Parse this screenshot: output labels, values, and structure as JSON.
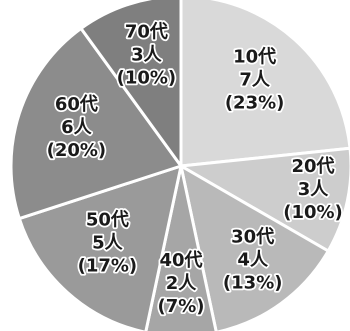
{
  "chart_data": {
    "type": "pie",
    "title": "",
    "slices": [
      {
        "category": "10代",
        "count_label": "7人",
        "percent_label": "(23%)",
        "value": 7,
        "color": "#d9d9d9"
      },
      {
        "category": "20代",
        "count_label": "3人",
        "percent_label": "(10%)",
        "value": 3,
        "color": "#cdcdcd"
      },
      {
        "category": "30代",
        "count_label": "4人",
        "percent_label": "(13%)",
        "value": 4,
        "color": "#b9b9b9"
      },
      {
        "category": "40代",
        "count_label": "2人",
        "percent_label": "(7%)",
        "value": 2,
        "color": "#a6a6a6"
      },
      {
        "category": "50代",
        "count_label": "5人",
        "percent_label": "(17%)",
        "value": 5,
        "color": "#9a9a9a"
      },
      {
        "category": "60代",
        "count_label": "6人",
        "percent_label": "(20%)",
        "value": 6,
        "color": "#8c8c8c"
      },
      {
        "category": "70代",
        "count_label": "3人",
        "percent_label": "(10%)",
        "value": 3,
        "color": "#7f7f7f"
      }
    ]
  }
}
